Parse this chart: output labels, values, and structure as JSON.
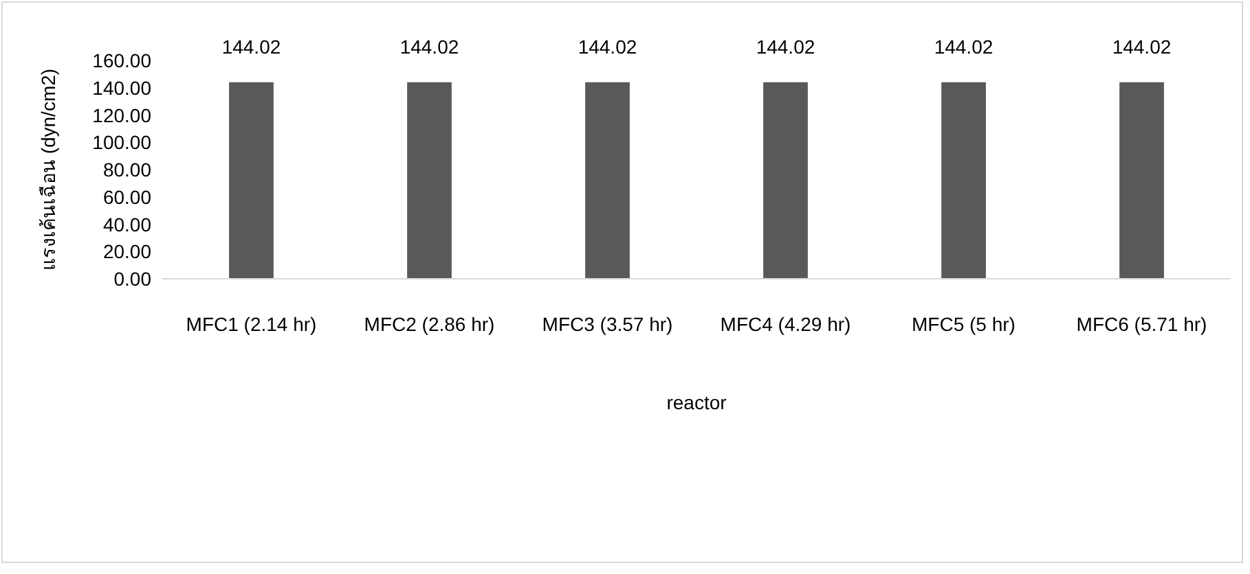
{
  "chart_data": {
    "type": "bar",
    "xlabel": "reactor",
    "ylabel": "แรงเค้นเฉือน (dyn/cm2)",
    "categories": [
      "MFC1 (2.14 hr)",
      "MFC2 (2.86 hr)",
      "MFC3 (3.57 hr)",
      "MFC4 (4.29 hr)",
      "MFC5 (5 hr)",
      "MFC6 (5.71 hr)"
    ],
    "values": [
      144.02,
      144.02,
      144.02,
      144.02,
      144.02,
      144.02
    ],
    "color": "#595959",
    "data_labels": true,
    "ylim": [
      0,
      160
    ],
    "yticks": [
      {
        "value": 0,
        "label": "0.00"
      },
      {
        "value": 20,
        "label": "20.00"
      },
      {
        "value": 40,
        "label": "40.00"
      },
      {
        "value": 60,
        "label": "60.00"
      },
      {
        "value": 80,
        "label": "80.00"
      },
      {
        "value": 100,
        "label": "100.00"
      },
      {
        "value": 120,
        "label": "120.00"
      },
      {
        "value": 140,
        "label": "140.00"
      },
      {
        "value": 160,
        "label": "160.00"
      }
    ],
    "grid": false
  }
}
